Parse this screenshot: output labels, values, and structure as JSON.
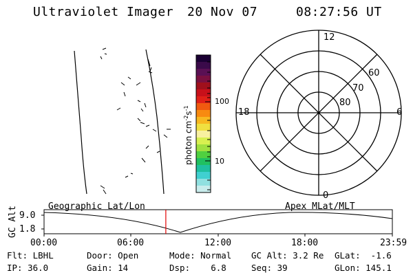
{
  "header": {
    "instrument": "Ultraviolet Imager",
    "date": "20 Nov 07",
    "time": "08:27:56 UT"
  },
  "colorbar": {
    "unit_label_main": "photon cm",
    "unit_sup1": "-2",
    "unit_mid": "s",
    "unit_sup2": "-1",
    "tick_100": "100",
    "tick_10": "10",
    "colors": [
      "#1a0033",
      "#3a0a4a",
      "#5a1054",
      "#7a1040",
      "#a0101c",
      "#c8101a",
      "#e02018",
      "#f05a10",
      "#f88a10",
      "#f8b820",
      "#f0e040",
      "#f8f0a0",
      "#d8f050",
      "#a0e040",
      "#50d040",
      "#20c060",
      "#20c0a0",
      "#40d0d0",
      "#90e0e0",
      "#c8ecec"
    ]
  },
  "polar": {
    "lat_labels": [
      "80",
      "70",
      "60"
    ],
    "mlt_labels": {
      "top": "12",
      "left": "18",
      "right": "6",
      "bottom": "0"
    }
  },
  "orbit_panel": {
    "y_axis_label": "GC Alt",
    "y_ticks": [
      "9.0",
      "1.8"
    ],
    "left_label": "Geographic Lat/Lon",
    "right_label": "Apex MLat/MLT",
    "x_ticks": [
      "00:00",
      "06:00",
      "12:00",
      "18:00",
      "23:59"
    ],
    "current_marker_fraction": 0.3497
  },
  "info": {
    "filter": "Flt: LBHL",
    "ip": "IP: 36.0",
    "door": "Door: Open",
    "gain": "Gain: 14",
    "mode": "Mode: Normal",
    "dsp": "Dsp:    6.8",
    "gc_alt": "GC Alt: 3.2 Re",
    "seq": "Seq: 39",
    "glat": "GLat:  -1.6",
    "glon": "GLon: 145.1"
  }
}
